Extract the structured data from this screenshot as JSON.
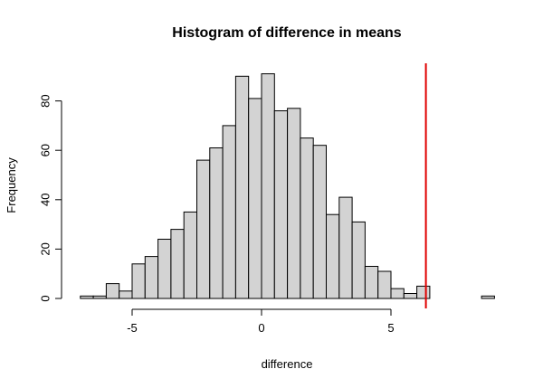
{
  "chart_data": {
    "type": "bar",
    "title": "Histogram of difference in means",
    "xlabel": "difference",
    "ylabel": "Frequency",
    "bin_width": 0.5,
    "bin_edges_start": -7,
    "counts": [
      1,
      1,
      6,
      3,
      14,
      17,
      24,
      28,
      35,
      56,
      61,
      70,
      90,
      81,
      91,
      76,
      77,
      65,
      62,
      34,
      41,
      31,
      13,
      11,
      4,
      2,
      5,
      0,
      0,
      0,
      0,
      1
    ],
    "xlim": [
      -7.5,
      9
    ],
    "ylim": [
      0,
      95
    ],
    "xticks": [
      -5,
      0,
      5
    ],
    "yticks": [
      0,
      20,
      40,
      60,
      80
    ],
    "observed_line": {
      "x": 6.35,
      "color": "#e00000"
    },
    "bar_color": "#d3d3d3"
  }
}
